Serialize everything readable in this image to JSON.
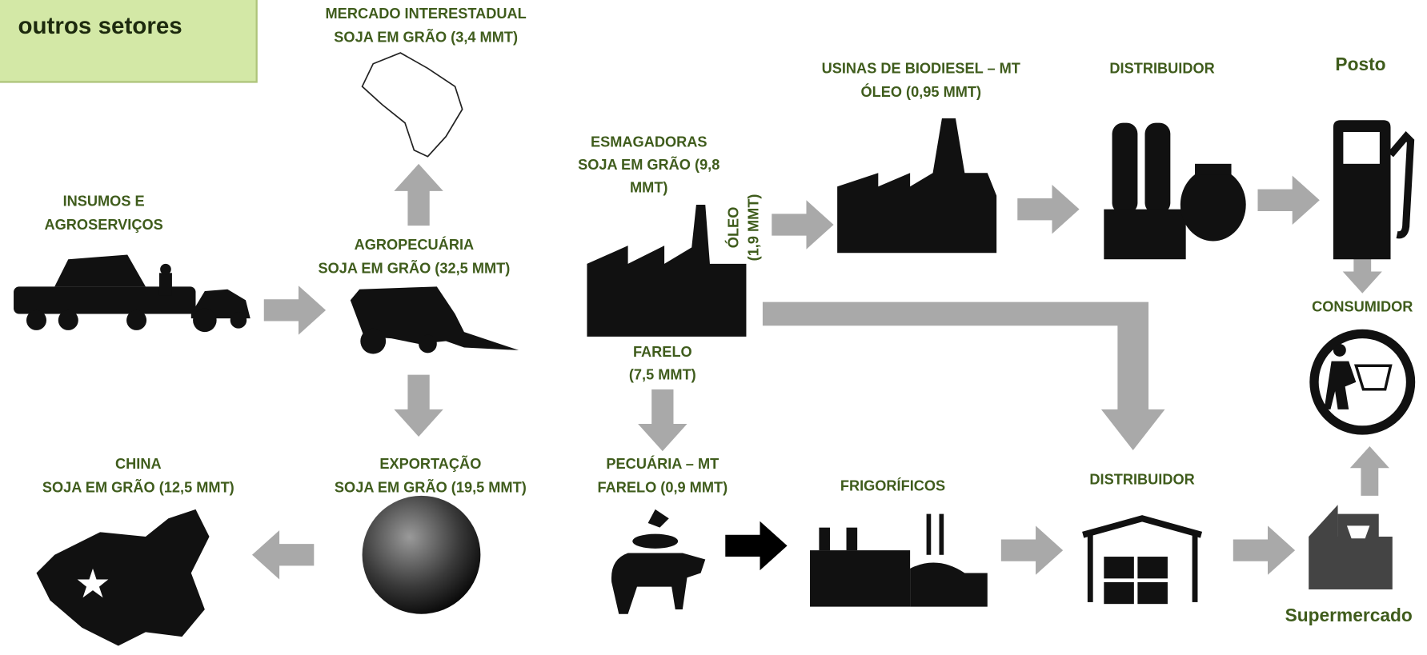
{
  "note": {
    "text": "outros setores"
  },
  "nodes": [
    {
      "lines": [
        "MERCADO INTERESTADUAL",
        "SOJA EM GRÃO (3,4 MMT)"
      ]
    },
    {
      "lines": [
        "INSUMOS E",
        "AGROSERVIÇOS"
      ]
    },
    {
      "lines": [
        "AGROPECUÁRIA",
        "SOJA EM GRÃO (32,5 MMT)"
      ]
    },
    {
      "lines": [
        "ESMAGADORAS",
        "SOJA EM GRÃO (9,8",
        "MMT)"
      ]
    },
    {
      "lines": [
        "ÓLEO",
        "(1,9 MMT)"
      ]
    },
    {
      "lines": [
        "FARELO",
        "(7,5 MMT)"
      ]
    },
    {
      "lines": [
        "USINAS DE BIODIESEL – MT",
        "ÓLEO (0,95 MMT)"
      ]
    },
    {
      "lines": [
        "DISTRIBUIDOR"
      ]
    },
    {
      "lines": [
        "Posto"
      ]
    },
    {
      "lines": [
        "CONSUMIDOR"
      ]
    },
    {
      "lines": [
        "CHINA",
        "SOJA EM GRÃO (12,5 MMT)"
      ]
    },
    {
      "lines": [
        "EXPORTAÇÃO",
        "SOJA EM GRÃO (19,5 MMT)"
      ]
    },
    {
      "lines": [
        "PECUÁRIA – MT",
        "FARELO (0,9 MMT)"
      ]
    },
    {
      "lines": [
        "FRIGORÍFICOS"
      ]
    },
    {
      "lines": [
        "DISTRIBUIDOR"
      ]
    },
    {
      "lines": [
        "Supermercado"
      ]
    }
  ]
}
